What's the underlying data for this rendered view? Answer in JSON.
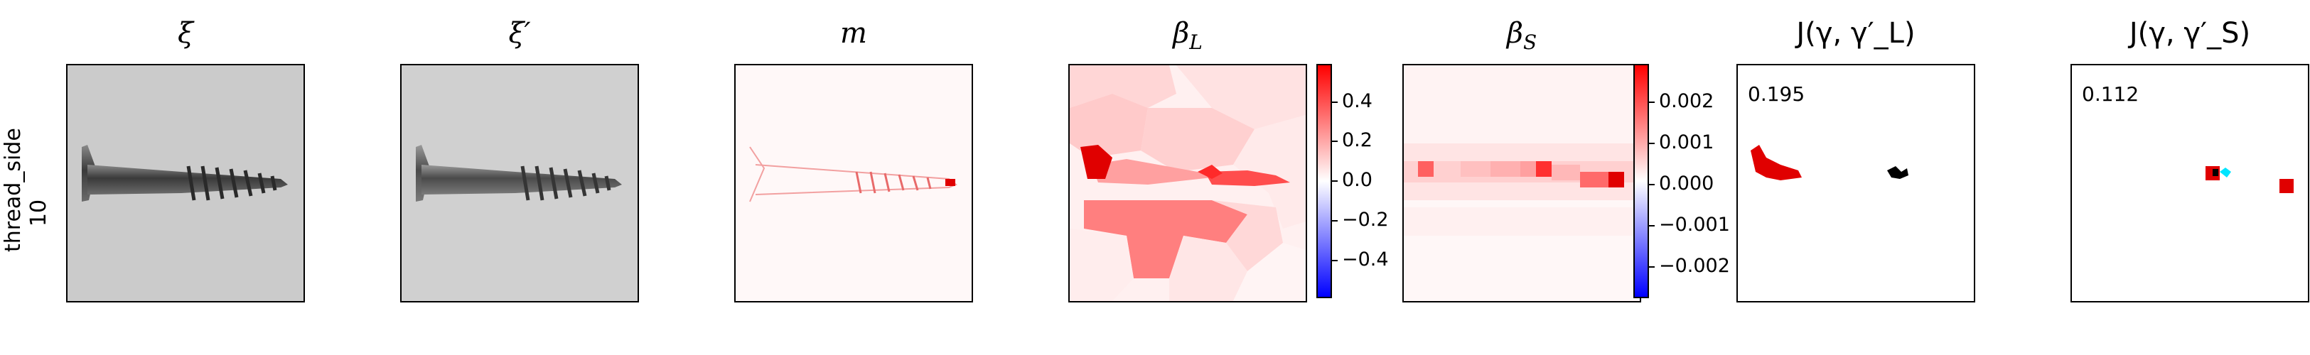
{
  "row_label": "thread_side\n10",
  "row_label_lines": [
    "thread_side",
    "10"
  ],
  "panels": [
    {
      "title": "ξ"
    },
    {
      "title": "ξ′"
    },
    {
      "title": "m"
    },
    {
      "title": "β_L",
      "main": "β",
      "sub": "L"
    },
    {
      "title": "β_S",
      "main": "β",
      "sub": "S"
    },
    {
      "title": "J(γ, γ′_L)",
      "score": "0.195"
    },
    {
      "title": "J(γ, γ′_S)",
      "score": "0.112"
    }
  ],
  "colorbar_L": {
    "ticks": [
      "0.4",
      "0.2",
      "0.0",
      "−0.2",
      "−0.4"
    ]
  },
  "colorbar_S": {
    "ticks": [
      "0.002",
      "0.001",
      "0.000",
      "−0.001",
      "−0.002"
    ]
  },
  "colors": {
    "positive": "#ff0000",
    "negative": "#0000ff",
    "match": "#000000",
    "alt": "#00e5ff"
  }
}
